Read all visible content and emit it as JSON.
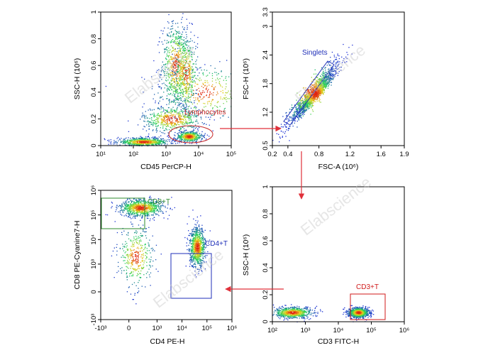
{
  "figure": {
    "watermark": "Elabscience",
    "colors": {
      "density_low": "#1a2bd6",
      "density_mid": "#1fd15a",
      "density_high": "#e8d21a",
      "density_peak": "#e02010",
      "gate_lymphocytes": "#c82828",
      "gate_singlets": "#1f2fb8",
      "gate_cd8": "#2e8b2e",
      "gate_cd4": "#1f2fb8",
      "gate_cd3": "#d01a1a",
      "arrow": "#e0303a"
    }
  },
  "chart_data": [
    {
      "type": "scatter",
      "plot": "density dot plot",
      "xlabel": "CD45 PerCP-H",
      "ylabel": "SSC-H (10⁶)",
      "x_scale": "log",
      "xlim": [
        10,
        100000
      ],
      "x_ticks": [
        "10¹",
        "10²",
        "10³",
        "10⁴",
        "10⁵"
      ],
      "y_scale": "linear",
      "ylim": [
        0,
        1
      ],
      "y_ticks": [
        "0",
        "0.2",
        "0.4",
        "0.6",
        "0.8",
        "1"
      ],
      "populations": [
        {
          "x": 15000,
          "y": 0.4,
          "spread_x": 0.75,
          "spread_y": 0.1
        },
        {
          "x": 2000,
          "y": 0.6,
          "spread_x": 0.22,
          "spread_y": 0.16
        },
        {
          "x": 4000,
          "y": 0.55,
          "spread_x": 0.18,
          "spread_y": 0.14
        },
        {
          "x": 1500,
          "y": 0.2,
          "spread_x": 0.45,
          "spread_y": 0.05
        },
        {
          "x": 5000,
          "y": 0.07,
          "spread_x": 0.2,
          "spread_y": 0.02
        },
        {
          "x": 200,
          "y": 0.03,
          "spread_x": 0.4,
          "spread_y": 0.015
        }
      ],
      "gates": [
        {
          "label": "Lymphocytes",
          "shape": "ellipse",
          "x": [
            2500,
            12000
          ],
          "y": [
            0.02,
            0.14
          ]
        }
      ]
    },
    {
      "type": "scatter",
      "plot": "density dot plot",
      "xlabel": "FSC-A (10⁶)",
      "ylabel": "FSC-H (10⁶)",
      "x_scale": "linear",
      "xlim": [
        0.2,
        1.9
      ],
      "x_ticks": [
        "0.2",
        "0.4",
        "0.8",
        "1.2",
        "1.6",
        "1.9"
      ],
      "y_scale": "linear",
      "ylim": [
        0.5,
        3.3
      ],
      "y_ticks": [
        "0.5",
        "1.2",
        "1.8",
        "2.4",
        "3",
        "3.3"
      ],
      "populations": [
        {
          "x": 0.7,
          "y": 1.6,
          "spread_x": 0.17,
          "spread_y": 0.35
        },
        {
          "x": 0.75,
          "y": 1.6,
          "spread_x": 0.12,
          "spread_y": 0.22
        }
      ],
      "gates": [
        {
          "label": "Singlets",
          "shape": "polygon",
          "x": [
            0.35,
            0.95
          ],
          "y": [
            1.1,
            2.3
          ]
        }
      ]
    },
    {
      "type": "scatter",
      "plot": "density dot plot",
      "xlabel": "CD4 PE-H",
      "ylabel": "CD8 PE-Cyanine7-H",
      "x_scale": "biexponential",
      "xlim": [
        -1000,
        1000000
      ],
      "x_ticks": [
        "-10³",
        "0",
        "10³",
        "10⁴",
        "10⁵",
        "10⁶"
      ],
      "y_scale": "biexponential",
      "ylim": [
        -1000,
        1000000
      ],
      "y_ticks": [
        "-10³",
        "0",
        "10³",
        "10⁴",
        "10⁵",
        "10⁶"
      ],
      "populations": [
        {
          "x": 200,
          "y": 200000,
          "spread_x": 0.5,
          "spread_y": 0.2
        },
        {
          "x": 40000,
          "y": 5000,
          "spread_x": 0.18,
          "spread_y": 0.45
        },
        {
          "x": 100,
          "y": 2000,
          "spread_x": 0.4,
          "spread_y": 0.7
        }
      ],
      "gates": [
        {
          "label": "CD8+T",
          "shape": "rectangle",
          "x": [
            -800,
            3000
          ],
          "y": [
            30000,
            700000
          ]
        },
        {
          "label": "CD4+T",
          "shape": "rectangle",
          "x": [
            6000,
            150000
          ],
          "y": [
            400,
            50000
          ]
        }
      ]
    },
    {
      "type": "scatter",
      "plot": "density dot plot",
      "xlabel": "CD3 FITC-H",
      "ylabel": "SSC-H (10⁶)",
      "x_scale": "log",
      "xlim": [
        100,
        1000000
      ],
      "x_ticks": [
        "10²",
        "10³",
        "10⁴",
        "10⁵",
        "10⁶"
      ],
      "y_scale": "linear",
      "ylim": [
        0,
        1
      ],
      "y_ticks": [
        "0",
        "0.2",
        "0.4",
        "0.6",
        "0.8",
        "1"
      ],
      "populations": [
        {
          "x": 40000,
          "y": 0.07,
          "spread_x": 0.15,
          "spread_y": 0.018
        },
        {
          "x": 400,
          "y": 0.07,
          "spread_x": 0.3,
          "spread_y": 0.02
        }
      ],
      "gates": [
        {
          "label": "CD3+T",
          "shape": "rectangle",
          "x": [
            10000,
            120000
          ],
          "y": [
            0.02,
            0.16
          ]
        }
      ]
    }
  ]
}
